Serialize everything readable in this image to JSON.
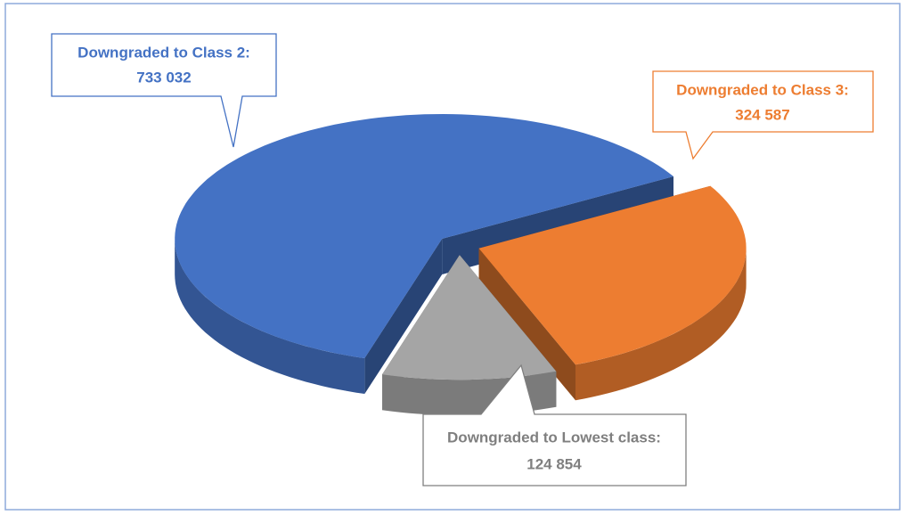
{
  "chart_data": {
    "type": "pie3d",
    "categories": [
      "Downgraded to Class 2:",
      "Downgraded to Class 3:",
      "Downgraded to Lowest class:"
    ],
    "values": [
      733032,
      324587,
      124854
    ],
    "value_labels": [
      "733 032",
      "324 587",
      "124 854"
    ],
    "colors": [
      "#4472c4",
      "#ed7d31",
      "#a5a5a5"
    ]
  }
}
